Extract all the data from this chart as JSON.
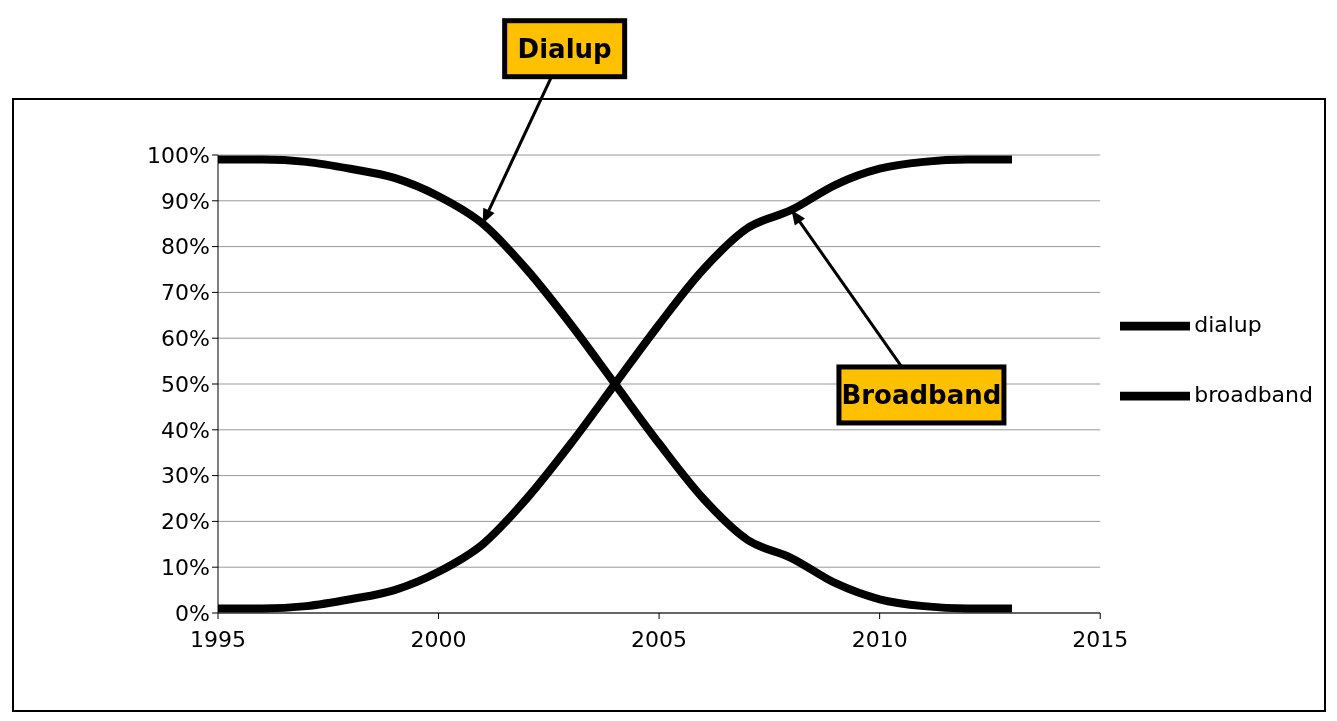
{
  "chart_data": {
    "type": "line",
    "x": [
      1995,
      1996,
      1997,
      1998,
      1999,
      2000,
      2001,
      2002,
      2003,
      2004,
      2005,
      2006,
      2007,
      2008,
      2009,
      2010,
      2011,
      2012,
      2013
    ],
    "series": [
      {
        "name": "dialup",
        "color": "#000000",
        "values": [
          99,
          99,
          98.5,
          97,
          95,
          91,
          85,
          75,
          63,
          50,
          37,
          25,
          16,
          12,
          6.5,
          3,
          1.5,
          1,
          1
        ]
      },
      {
        "name": "broadband",
        "color": "#000000",
        "values": [
          1,
          1,
          1.5,
          3,
          5,
          9,
          15,
          25,
          37,
          50,
          63,
          75,
          84,
          88,
          93.5,
          97,
          98.5,
          99,
          99
        ]
      }
    ],
    "xlim": [
      1995,
      2015
    ],
    "xticks": [
      1995,
      2000,
      2005,
      2010,
      2015
    ],
    "ylim": [
      0,
      100
    ],
    "yticks": [
      {
        "value": 0,
        "label": "0%"
      },
      {
        "value": 10,
        "label": "10%"
      },
      {
        "value": 20,
        "label": "20%"
      },
      {
        "value": 30,
        "label": "30%"
      },
      {
        "value": 40,
        "label": "40%"
      },
      {
        "value": 50,
        "label": "50%"
      },
      {
        "value": 60,
        "label": "60%"
      },
      {
        "value": 70,
        "label": "70%"
      },
      {
        "value": 80,
        "label": "80%"
      },
      {
        "value": 90,
        "label": "90%"
      },
      {
        "value": 100,
        "label": "100%"
      }
    ],
    "grid": "y",
    "legend": "right",
    "marker": "none",
    "line_style": "solid",
    "annotations": [
      {
        "text": "Dialup",
        "x": 2001,
        "y": 85
      },
      {
        "text": "Broadband",
        "x": 2008,
        "y": 88
      }
    ]
  }
}
